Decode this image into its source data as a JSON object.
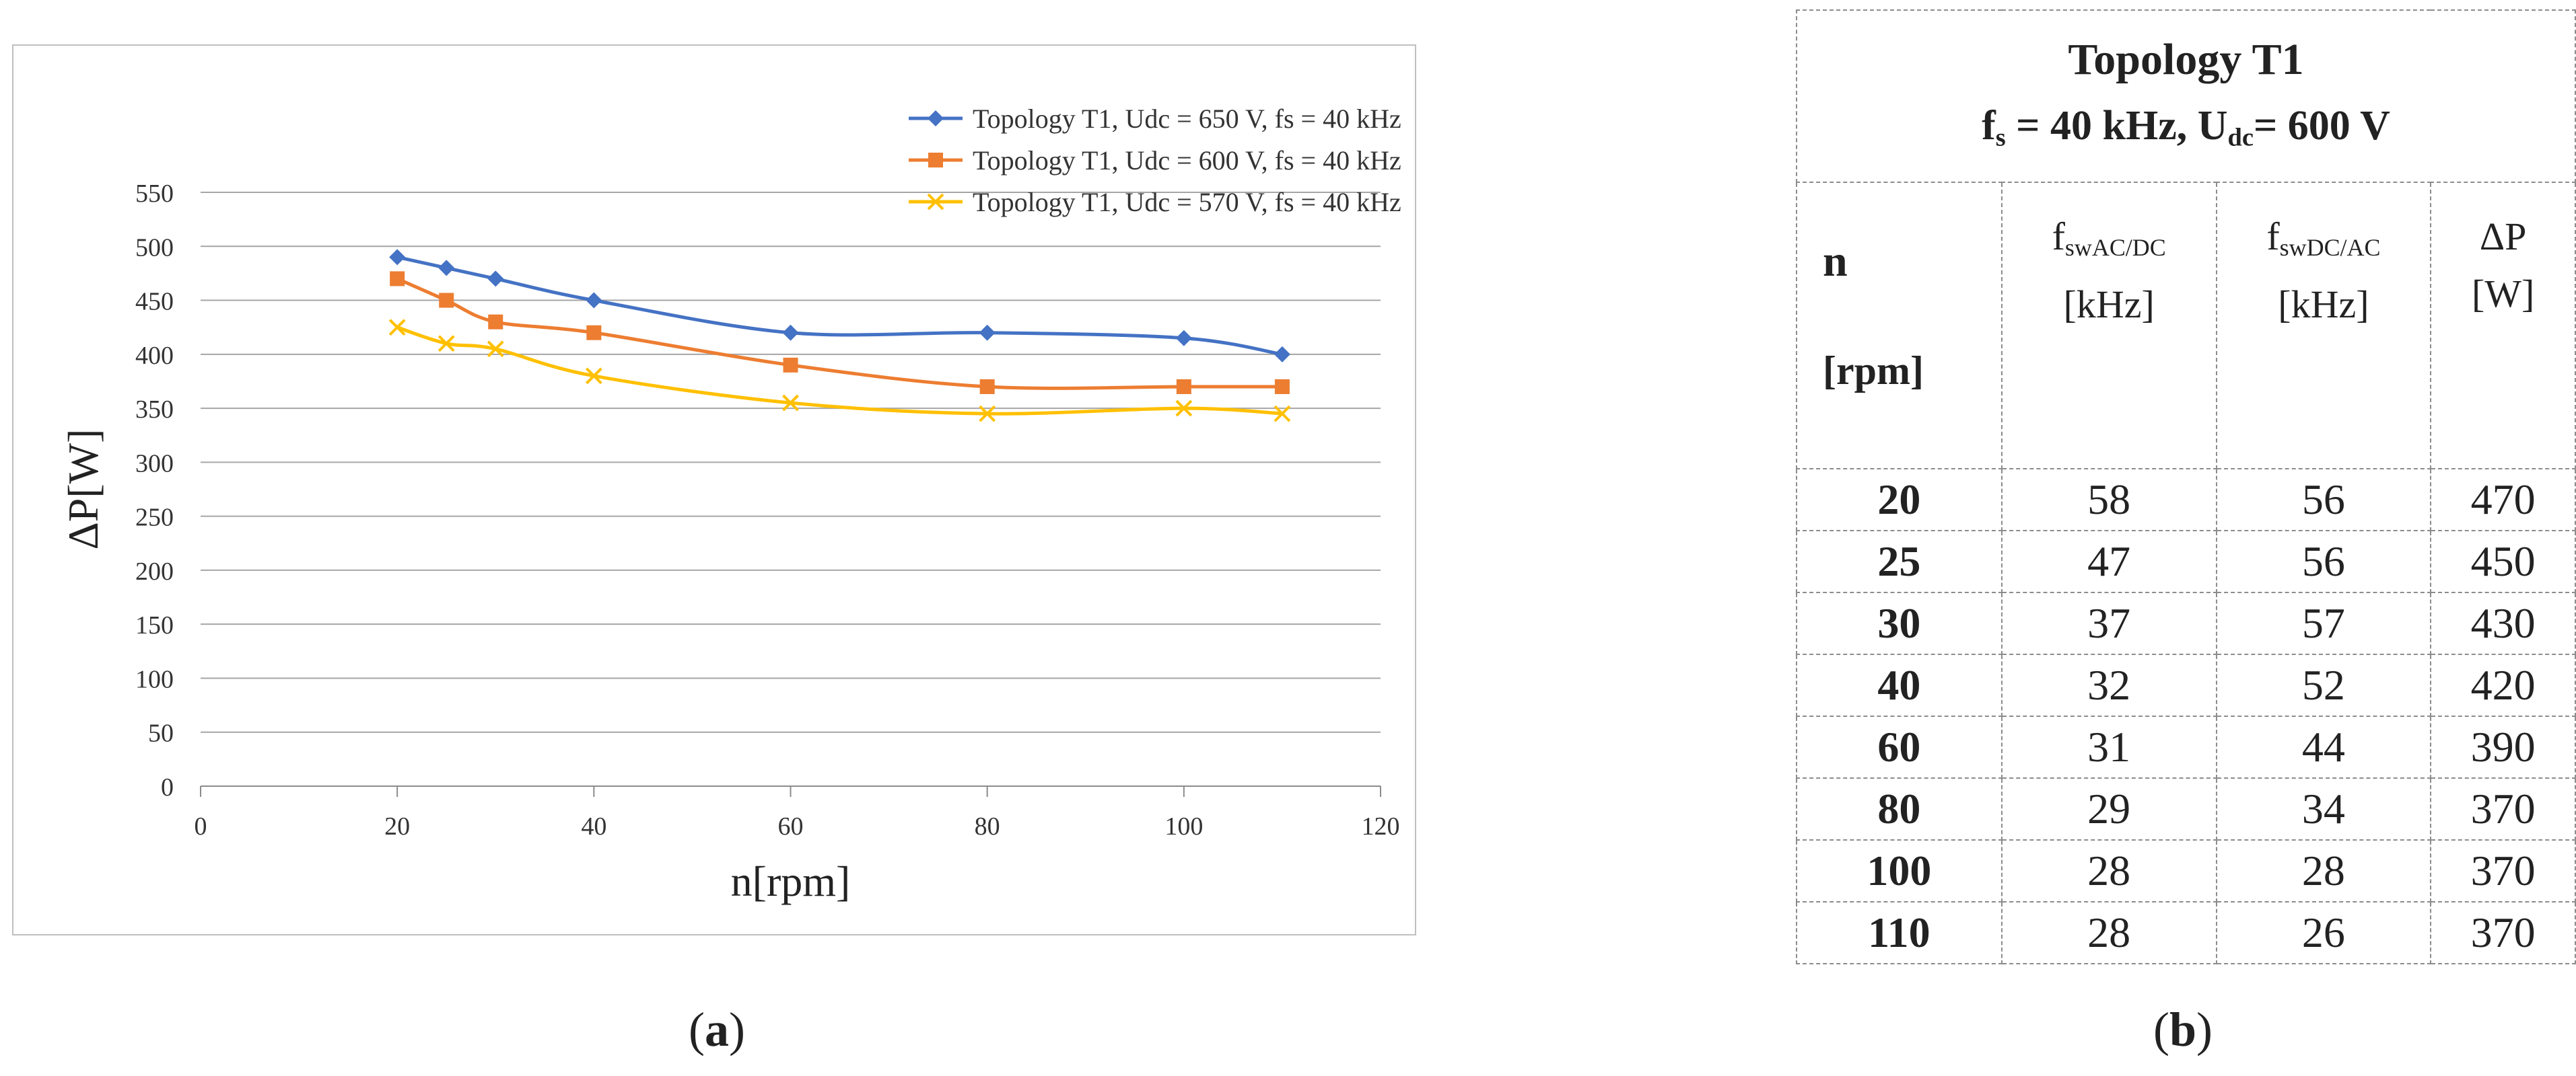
{
  "caption_a": "a",
  "caption_b": "b",
  "chart_data": {
    "type": "line",
    "xlabel": "n[rpm]",
    "ylabel": "ΔP[W]",
    "xlim": [
      0,
      120
    ],
    "ylim": [
      0,
      550
    ],
    "xticks": [
      0,
      20,
      40,
      60,
      80,
      100,
      120
    ],
    "yticks": [
      0,
      50,
      100,
      150,
      200,
      250,
      300,
      350,
      400,
      450,
      500,
      550
    ],
    "grid": "horizontal",
    "legend_position": "top-right",
    "x": [
      20,
      25,
      30,
      40,
      60,
      80,
      100,
      110
    ],
    "series": [
      {
        "name": "Topology T1, Udc = 650 V, fs = 40 kHz",
        "color": "#4472c4",
        "marker": "diamond",
        "values": [
          490,
          480,
          470,
          450,
          420,
          420,
          415,
          400
        ]
      },
      {
        "name": "Topology T1, Udc = 600 V, fs = 40 kHz",
        "color": "#ed7d31",
        "marker": "square",
        "values": [
          470,
          450,
          430,
          420,
          390,
          370,
          370,
          370
        ]
      },
      {
        "name": "Topology T1, Udc = 570 V, fs = 40 kHz",
        "color": "#ffc000",
        "marker": "cross",
        "values": [
          425,
          410,
          405,
          380,
          355,
          345,
          350,
          345
        ]
      }
    ]
  },
  "table": {
    "title": "Topology T1",
    "subtitle": {
      "f": "f",
      "f_sub": "s",
      "f_rest": " = 40 kHz, U",
      "u_sub": "dc",
      "u_rest": "= 600 V"
    },
    "headers": {
      "n": "n",
      "rpm": "[rpm]",
      "col2_main": "f",
      "col2_sub": "swAC/DC",
      "col2_unit": "[kHz]",
      "col3_main": "f",
      "col3_sub": "swDC/AC",
      "col3_unit": "[kHz]",
      "col4_main": "ΔP",
      "col4_unit": "[W]"
    },
    "rows": [
      [
        "20",
        "58",
        "56",
        "470"
      ],
      [
        "25",
        "47",
        "56",
        "450"
      ],
      [
        "30",
        "37",
        "57",
        "430"
      ],
      [
        "40",
        "32",
        "52",
        "420"
      ],
      [
        "60",
        "31",
        "44",
        "390"
      ],
      [
        "80",
        "29",
        "34",
        "370"
      ],
      [
        "100",
        "28",
        "28",
        "370"
      ],
      [
        "110",
        "28",
        "26",
        "370"
      ]
    ]
  }
}
